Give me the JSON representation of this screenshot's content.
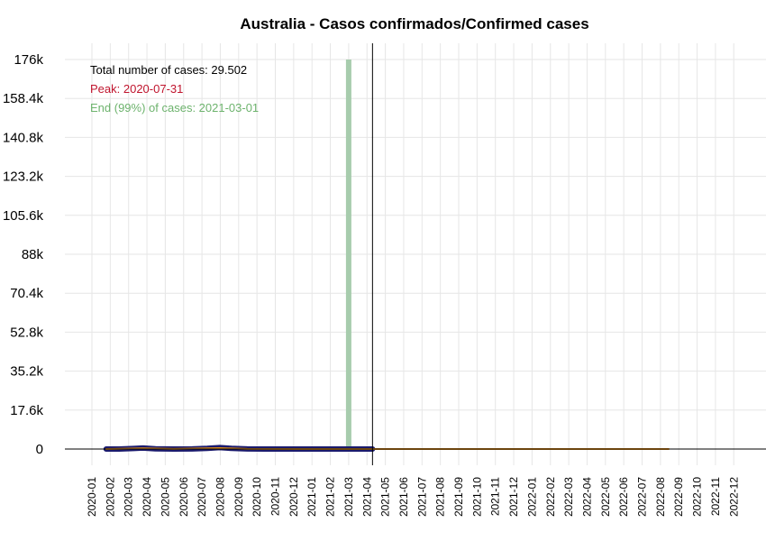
{
  "chart_data": {
    "type": "line",
    "title": "Australia - Casos confirmados/Confirmed cases",
    "xlabel": "",
    "ylabel": "",
    "ylim": [
      0,
      176000
    ],
    "yticks": [
      0,
      17600,
      35200,
      52800,
      70400,
      88000,
      105600,
      123200,
      140800,
      158400,
      176000
    ],
    "ytick_labels": [
      "0",
      "17.6k",
      "35.2k",
      "52.8k",
      "70.4k",
      "88k",
      "105.6k",
      "123.2k",
      "140.8k",
      "158.4k",
      "176k"
    ],
    "xlim": [
      "2020-01",
      "2022-12"
    ],
    "xtick_labels": [
      "2020-01",
      "2020-02",
      "2020-03",
      "2020-04",
      "2020-05",
      "2020-06",
      "2020-07",
      "2020-08",
      "2020-09",
      "2020-10",
      "2020-11",
      "2020-12",
      "2021-01",
      "2021-02",
      "2021-03",
      "2021-04",
      "2021-05",
      "2021-06",
      "2021-07",
      "2021-08",
      "2021-09",
      "2021-10",
      "2021-11",
      "2021-12",
      "2022-01",
      "2022-02",
      "2022-03",
      "2022-04",
      "2022-05",
      "2022-06",
      "2022-07",
      "2022-08",
      "2022-09",
      "2022-10",
      "2022-11",
      "2022-12"
    ],
    "grid": true,
    "vline_date": "2021-04-10",
    "end_bar_date": "2021-03-01",
    "annotations": {
      "total": "Total number of cases: 29.502",
      "peak": "Peak: 2020-07-31",
      "end": "End (99%) of cases: 2021-03-01"
    },
    "series": [
      {
        "role": "observed",
        "color": "#1a1a6e",
        "x": [
          "2020-01-25",
          "2020-02-15",
          "2020-03-10",
          "2020-03-25",
          "2020-04-15",
          "2020-05-15",
          "2020-06-15",
          "2020-07-10",
          "2020-07-31",
          "2020-08-20",
          "2020-09-15",
          "2020-10-15",
          "2020-11-15",
          "2020-12-15",
          "2021-01-15",
          "2021-02-15",
          "2021-03-15",
          "2021-04-10"
        ],
        "y": [
          5,
          15,
          250,
          450,
          80,
          20,
          25,
          300,
          650,
          300,
          50,
          15,
          10,
          15,
          10,
          10,
          12,
          12
        ]
      },
      {
        "role": "fitted",
        "color": "#d98a1c",
        "x": [
          "2020-01-25",
          "2020-03-25",
          "2020-05-15",
          "2020-07-31",
          "2020-09-15",
          "2020-12-15",
          "2021-03-01",
          "2021-06-01",
          "2021-12-01",
          "2022-08-15"
        ],
        "y": [
          0,
          300,
          50,
          400,
          60,
          5,
          0,
          0,
          0,
          0
        ]
      }
    ],
    "colors": {
      "total": "#000000",
      "peak": "#c0142d",
      "end": "#6db36d",
      "end_bar": "#a7ccad",
      "grid": "#e6e6e6"
    }
  }
}
